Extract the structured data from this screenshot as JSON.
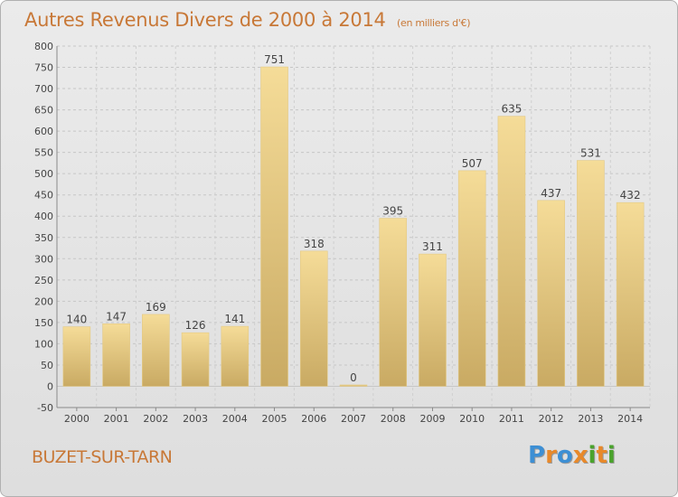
{
  "page": {
    "title": "Autres Revenus Divers de 2000 à 2014",
    "subtitle": "(en milliers d'€)",
    "location": "BUZET-SUR-TARN",
    "logo_text": "Proxiti"
  },
  "colors": {
    "title": "#c87837",
    "bar_light": "#f5dc98",
    "bar_dark": "#c9aa63",
    "grid": "#c6c6c6",
    "logo_letters": [
      "#3d8fd4",
      "#e8892a",
      "#3d8fd4",
      "#e8892a",
      "#4aa32c",
      "#e8892a",
      "#4aa32c"
    ]
  },
  "chart_data": {
    "type": "bar",
    "title": "Autres Revenus Divers de 2000 à 2014",
    "subtitle": "(en milliers d'€)",
    "categories": [
      "2000",
      "2001",
      "2002",
      "2003",
      "2004",
      "2005",
      "2006",
      "2007",
      "2008",
      "2009",
      "2010",
      "2011",
      "2012",
      "2013",
      "2014"
    ],
    "values": [
      140,
      147,
      169,
      126,
      141,
      751,
      318,
      0,
      395,
      311,
      507,
      635,
      437,
      531,
      432
    ],
    "value_labels": [
      "140",
      "147",
      "169",
      "126",
      "141",
      "751",
      "318",
      "0",
      "395",
      "311",
      "507",
      "635",
      "437",
      "531",
      "432"
    ],
    "ylim": [
      -50,
      800
    ],
    "yticks": [
      -50,
      0,
      50,
      100,
      150,
      200,
      250,
      300,
      350,
      400,
      450,
      500,
      550,
      600,
      650,
      700,
      750,
      800
    ],
    "ytick_labels": [
      "-50",
      "0",
      "50",
      "100",
      "150",
      "200",
      "250",
      "300",
      "350",
      "400",
      "450",
      "500",
      "550",
      "600",
      "650",
      "700",
      "750",
      "800"
    ],
    "grid": true,
    "xlabel": "",
    "ylabel": ""
  }
}
